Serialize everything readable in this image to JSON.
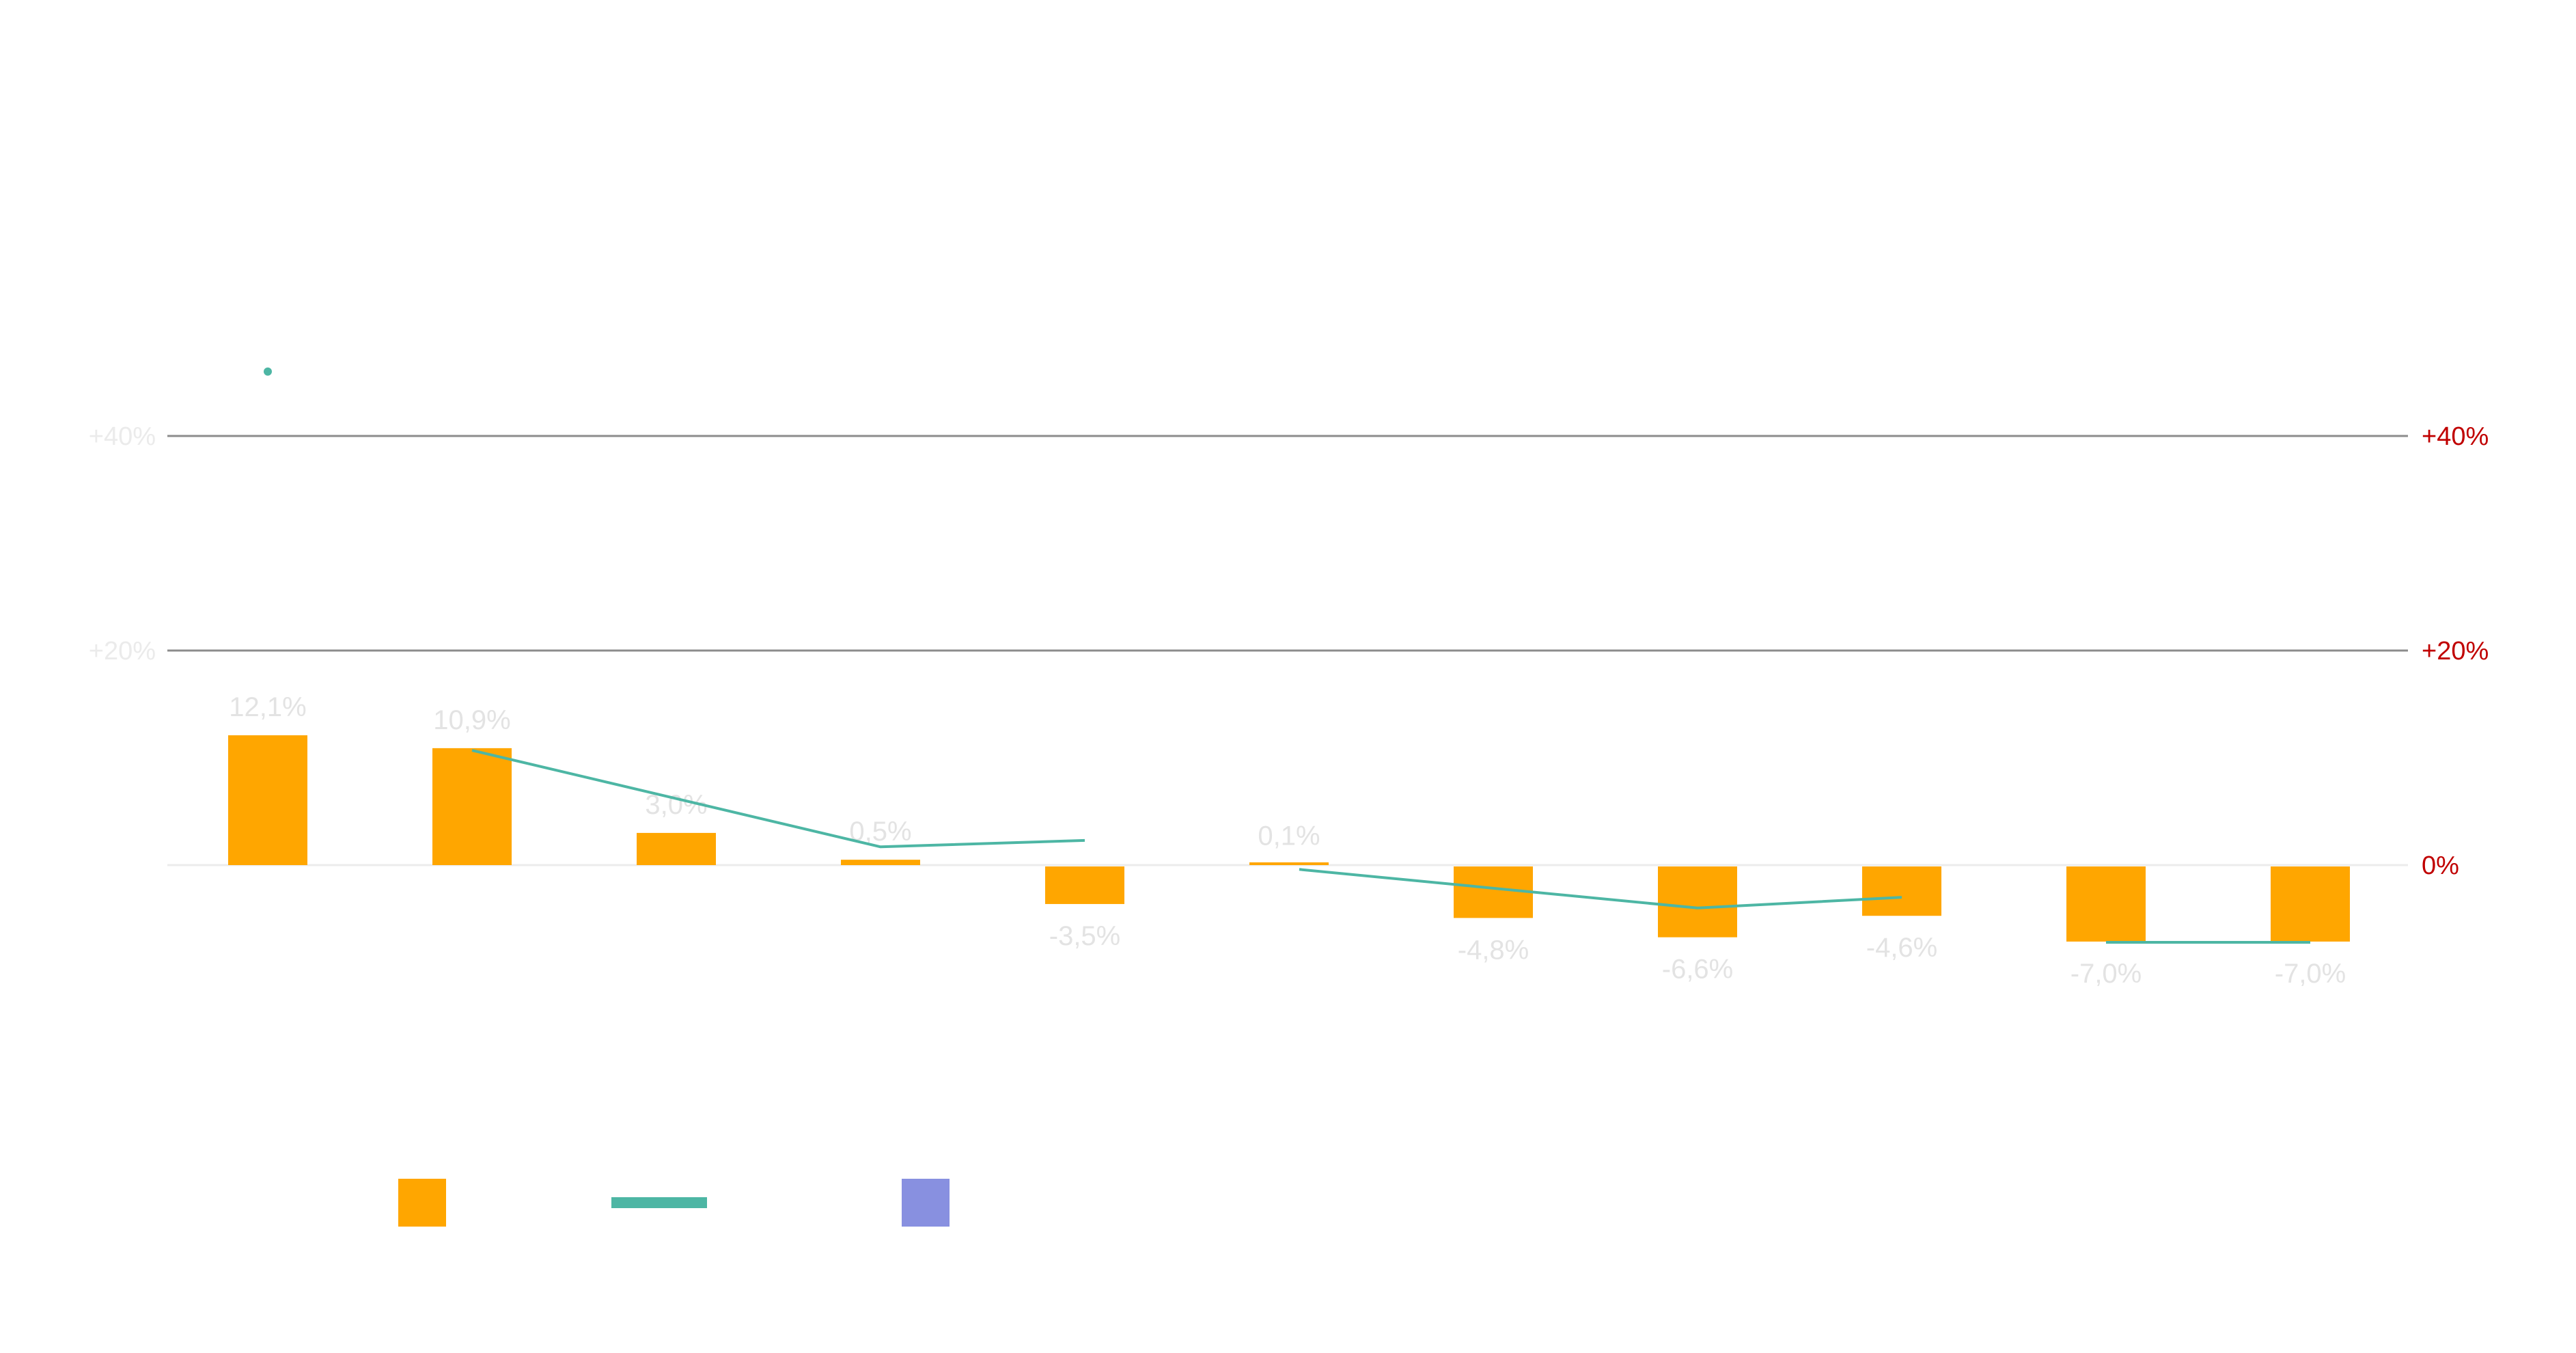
{
  "chart_data": {
    "type": "bar",
    "categories": [
      "",
      "",
      "",
      "",
      "",
      "",
      "",
      "",
      "",
      "",
      ""
    ],
    "series": [
      {
        "kind": "bar",
        "color": "#ffa600",
        "values": [
          12.1,
          10.9,
          3.0,
          0.5,
          -3.5,
          0.1,
          -4.8,
          -6.6,
          -4.6,
          -7.0,
          -7.0
        ],
        "labels": [
          "12,1%",
          "10,9%",
          "3,0%",
          "0,5%",
          "-3,5%",
          "0,1%",
          "-4,8%",
          "-6,6%",
          "-4,6%",
          "-7,0%",
          "-7,0%"
        ]
      },
      {
        "kind": "line",
        "color": "#4db6a4",
        "values": [
          null,
          10.7,
          null,
          1.7,
          2.3,
          null,
          -0.4,
          -4.0,
          -3.0,
          null,
          null
        ],
        "segments": [
          [
            1,
            3,
            4
          ],
          [
            5.05,
            7,
            8
          ],
          [
            9,
            10
          ]
        ],
        "segment_values": [
          [
            10.7,
            1.7,
            2.3
          ],
          [
            -0.4,
            -4.0,
            -3.0
          ],
          [
            -7.2,
            -7.2
          ]
        ]
      }
    ],
    "ylim": [
      -17,
      43
    ],
    "left_axis": {
      "ticks": [
        40,
        20
      ],
      "tick_labels": [
        "+40%",
        "+20%"
      ],
      "color": "#ebebeb"
    },
    "right_axis": {
      "ticks": [
        40,
        20,
        0
      ],
      "tick_labels": [
        "+40%",
        "+20%",
        "0%"
      ],
      "color": "#c00000"
    },
    "gridlines": [
      40,
      20
    ],
    "zero_line": true,
    "marker": {
      "value": 46,
      "category_index": 0,
      "color": "#4db6a4"
    },
    "legend": {
      "position": "bottom-left",
      "items": [
        {
          "symbol": "square",
          "color": "#ffa600"
        },
        {
          "symbol": "line",
          "color": "#4db6a4"
        },
        {
          "symbol": "square",
          "color": "#8890e0"
        }
      ]
    }
  }
}
